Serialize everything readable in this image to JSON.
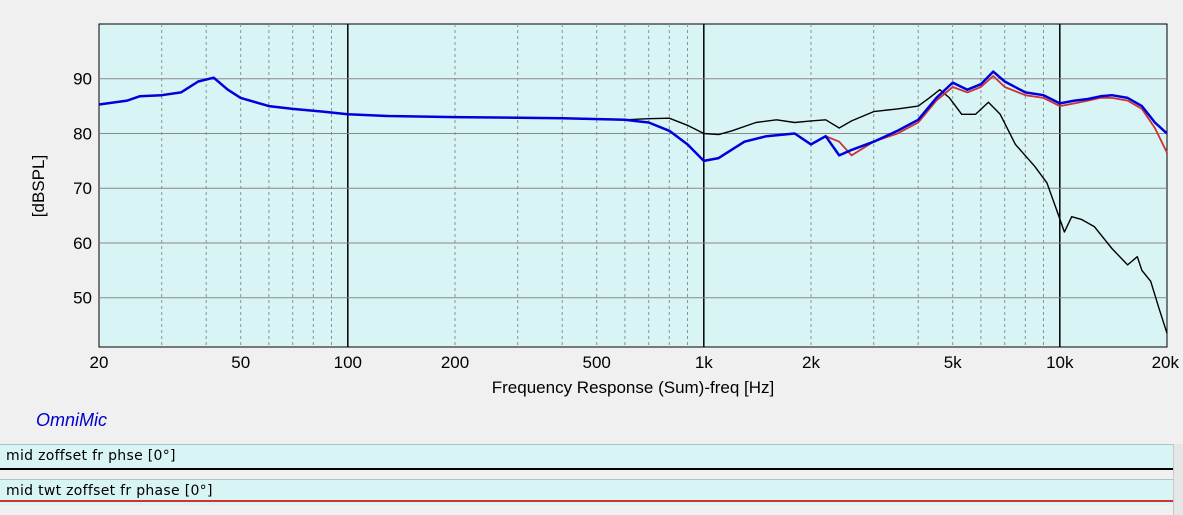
{
  "chart_data": {
    "type": "line",
    "title": "",
    "xlabel": "Frequency Response (Sum)-freq [Hz]",
    "ylabel": "[dBSPL]",
    "xscale": "log",
    "xlim": [
      20,
      20000
    ],
    "ylim": [
      41,
      100
    ],
    "x_tick_values": [
      20,
      50,
      100,
      200,
      500,
      1000,
      2000,
      5000,
      10000,
      20000
    ],
    "x_tick_labels": [
      "20",
      "50",
      "100",
      "200",
      "500",
      "1k",
      "2k",
      "5k",
      "10k",
      "20k"
    ],
    "y_ticks": [
      50,
      60,
      70,
      80,
      90
    ],
    "grid": true,
    "colors": {
      "plot_bg": "#d8f4f4",
      "blue": "#0000dd",
      "red": "#cc3333",
      "black": "#000000"
    },
    "series": [
      {
        "color": "#000000",
        "points": [
          [
            20,
            85.3
          ],
          [
            24,
            86
          ],
          [
            26,
            86.8
          ],
          [
            30,
            87
          ],
          [
            34,
            87.5
          ],
          [
            38,
            89.5
          ],
          [
            42,
            90.2
          ],
          [
            46,
            88
          ],
          [
            50,
            86.5
          ],
          [
            60,
            85
          ],
          [
            70,
            84.5
          ],
          [
            85,
            84
          ],
          [
            100,
            83.5
          ],
          [
            130,
            83.2
          ],
          [
            200,
            83
          ],
          [
            400,
            82.8
          ],
          [
            600,
            82.5
          ],
          [
            700,
            82.7
          ],
          [
            800,
            82.8
          ],
          [
            900,
            81.5
          ],
          [
            1000,
            80
          ],
          [
            1100,
            79.8
          ],
          [
            1200,
            80.5
          ],
          [
            1400,
            82
          ],
          [
            1600,
            82.5
          ],
          [
            1800,
            82
          ],
          [
            2000,
            82.3
          ],
          [
            2200,
            82.5
          ],
          [
            2400,
            81
          ],
          [
            2600,
            82.3
          ],
          [
            3000,
            84
          ],
          [
            3500,
            84.5
          ],
          [
            4000,
            85
          ],
          [
            4300,
            86.5
          ],
          [
            4600,
            88
          ],
          [
            4900,
            86.5
          ],
          [
            5300,
            83.5
          ],
          [
            5800,
            83.5
          ],
          [
            6300,
            85.7
          ],
          [
            6800,
            83.5
          ],
          [
            7500,
            78
          ],
          [
            8500,
            74
          ],
          [
            9200,
            71
          ],
          [
            9800,
            66
          ],
          [
            10300,
            62
          ],
          [
            10800,
            64.8
          ],
          [
            11500,
            64.3
          ],
          [
            12500,
            63
          ],
          [
            14000,
            59
          ],
          [
            15500,
            56
          ],
          [
            16500,
            57.5
          ],
          [
            17000,
            55
          ],
          [
            18000,
            53
          ],
          [
            19000,
            48
          ],
          [
            20000,
            43.5
          ]
        ]
      },
      {
        "color": "#cc3333",
        "points": [
          [
            20,
            85.3
          ],
          [
            24,
            86
          ],
          [
            26,
            86.8
          ],
          [
            30,
            87
          ],
          [
            34,
            87.5
          ],
          [
            38,
            89.5
          ],
          [
            42,
            90.2
          ],
          [
            46,
            88
          ],
          [
            50,
            86.5
          ],
          [
            60,
            85
          ],
          [
            70,
            84.5
          ],
          [
            85,
            84
          ],
          [
            100,
            83.5
          ],
          [
            130,
            83.2
          ],
          [
            200,
            83
          ],
          [
            400,
            82.8
          ],
          [
            600,
            82.5
          ],
          [
            700,
            82
          ],
          [
            800,
            80.5
          ],
          [
            900,
            78
          ],
          [
            1000,
            75
          ],
          [
            1100,
            75.5
          ],
          [
            1300,
            78.5
          ],
          [
            1500,
            79.5
          ],
          [
            1800,
            80
          ],
          [
            2000,
            78
          ],
          [
            2200,
            79.5
          ],
          [
            2400,
            78.5
          ],
          [
            2600,
            76
          ],
          [
            3000,
            78.5
          ],
          [
            3500,
            80
          ],
          [
            4000,
            82
          ],
          [
            4500,
            86
          ],
          [
            5000,
            88.5
          ],
          [
            5500,
            87.5
          ],
          [
            6000,
            88.5
          ],
          [
            6500,
            90.5
          ],
          [
            7000,
            88.5
          ],
          [
            8000,
            87
          ],
          [
            9000,
            86.5
          ],
          [
            10000,
            85
          ],
          [
            11000,
            85.5
          ],
          [
            12000,
            86
          ],
          [
            13000,
            86.5
          ],
          [
            14000,
            86.5
          ],
          [
            15500,
            86
          ],
          [
            17000,
            84.5
          ],
          [
            18500,
            81
          ],
          [
            20000,
            76.5
          ]
        ]
      },
      {
        "color": "#0000dd",
        "points": [
          [
            20,
            85.3
          ],
          [
            24,
            86
          ],
          [
            26,
            86.8
          ],
          [
            30,
            87
          ],
          [
            34,
            87.5
          ],
          [
            38,
            89.5
          ],
          [
            42,
            90.2
          ],
          [
            46,
            88
          ],
          [
            50,
            86.5
          ],
          [
            60,
            85
          ],
          [
            70,
            84.5
          ],
          [
            85,
            84
          ],
          [
            100,
            83.5
          ],
          [
            130,
            83.2
          ],
          [
            200,
            83
          ],
          [
            400,
            82.8
          ],
          [
            600,
            82.5
          ],
          [
            700,
            82
          ],
          [
            800,
            80.5
          ],
          [
            900,
            78
          ],
          [
            1000,
            75
          ],
          [
            1100,
            75.5
          ],
          [
            1300,
            78.5
          ],
          [
            1500,
            79.5
          ],
          [
            1800,
            80
          ],
          [
            2000,
            78
          ],
          [
            2200,
            79.5
          ],
          [
            2400,
            76
          ],
          [
            2600,
            77
          ],
          [
            3000,
            78.5
          ],
          [
            3500,
            80.5
          ],
          [
            4000,
            82.5
          ],
          [
            4500,
            86.5
          ],
          [
            5000,
            89.3
          ],
          [
            5500,
            88
          ],
          [
            6000,
            89
          ],
          [
            6500,
            91.3
          ],
          [
            7000,
            89.5
          ],
          [
            8000,
            87.5
          ],
          [
            9000,
            87
          ],
          [
            10000,
            85.5
          ],
          [
            11000,
            86
          ],
          [
            12000,
            86.3
          ],
          [
            13000,
            86.8
          ],
          [
            14000,
            87
          ],
          [
            15500,
            86.5
          ],
          [
            17000,
            85
          ],
          [
            18500,
            82
          ],
          [
            20000,
            80
          ]
        ]
      }
    ]
  },
  "brand": "OmniMic",
  "legend": [
    {
      "label": "mid zoffset fr phse [0°]",
      "color": "#000000"
    },
    {
      "label": "mid twt zoffset fr phase [0°]",
      "color": "#cc3333"
    }
  ]
}
